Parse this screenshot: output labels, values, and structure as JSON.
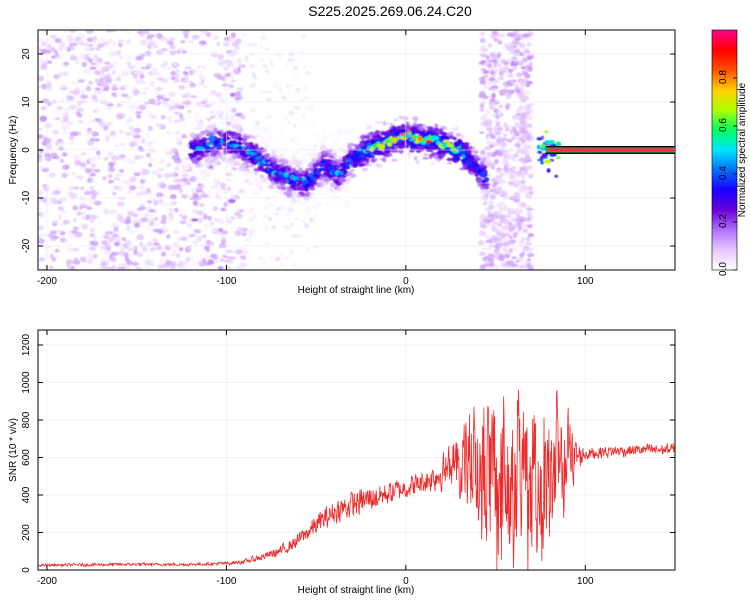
{
  "title": "S225.2025.269.06.24.C20",
  "chart_data": [
    {
      "type": "heatmap",
      "name": "spectrogram",
      "xlabel": "Height of straight line (km)",
      "ylabel": "Frequency (Hz)",
      "xlim": [
        -205,
        150
      ],
      "ylim": [
        -25,
        25
      ],
      "xticks": [
        -200,
        -100,
        0,
        100
      ],
      "yticks": [
        -20,
        -10,
        0,
        10,
        20
      ],
      "colorbar": {
        "label": "Normalized spectral amplitude",
        "range": [
          0,
          1
        ],
        "ticks": [
          0.0,
          0.2,
          0.4,
          0.6,
          0.8
        ],
        "colors": [
          "#ffffff",
          "#e6c8ff",
          "#b070ff",
          "#6a00d8",
          "#1a00ff",
          "#0070ff",
          "#00e6ff",
          "#00ff60",
          "#b0ff00",
          "#ffd000",
          "#ff5000",
          "#ff0000",
          "#ff0090"
        ]
      },
      "ridge": {
        "x": [
          -120,
          -100,
          -85,
          -75,
          -65,
          -55,
          -45,
          -38,
          -30,
          -22,
          -15,
          -8,
          0,
          8,
          15,
          22,
          30,
          35,
          40,
          45
        ],
        "y": [
          0,
          2,
          -1,
          -4,
          -6,
          -7,
          -3,
          -5,
          -2,
          0,
          1,
          2,
          3,
          2,
          2,
          1,
          0,
          -2,
          -4,
          -6
        ]
      },
      "carrier": {
        "x_start": 78,
        "x_end": 150,
        "frequency": 0
      }
    },
    {
      "type": "line",
      "name": "snr",
      "xlabel": "Height of straight line (km)",
      "ylabel": "SNR (10 * v/v)",
      "xlim": [
        -205,
        150
      ],
      "ylim": [
        0,
        1280
      ],
      "xticks": [
        -200,
        -100,
        0,
        100
      ],
      "yticks": [
        0,
        200,
        400,
        600,
        800,
        1000,
        1200
      ],
      "color": "#ee2a2a",
      "series": [
        {
          "name": "SNR",
          "x": [
            -205,
            -180,
            -150,
            -120,
            -100,
            -90,
            -80,
            -70,
            -60,
            -50,
            -40,
            -30,
            -20,
            -10,
            0,
            10,
            20,
            30,
            35,
            40,
            45,
            50,
            55,
            60,
            65,
            70,
            75,
            80,
            85,
            90,
            95,
            100,
            110,
            120,
            130,
            140,
            150
          ],
          "y": [
            25,
            28,
            30,
            30,
            35,
            45,
            70,
            100,
            160,
            240,
            310,
            350,
            380,
            410,
            440,
            470,
            520,
            570,
            600,
            560,
            520,
            500,
            520,
            500,
            480,
            470,
            460,
            480,
            520,
            560,
            600,
            620,
            630,
            635,
            640,
            640,
            645
          ],
          "noise_amplitude": [
            8,
            10,
            10,
            10,
            12,
            15,
            25,
            35,
            50,
            70,
            80,
            90,
            90,
            80,
            70,
            80,
            120,
            200,
            300,
            420,
            520,
            600,
            600,
            560,
            520,
            500,
            480,
            440,
            380,
            300,
            120,
            45,
            40,
            40,
            40,
            40,
            40
          ]
        }
      ]
    }
  ]
}
